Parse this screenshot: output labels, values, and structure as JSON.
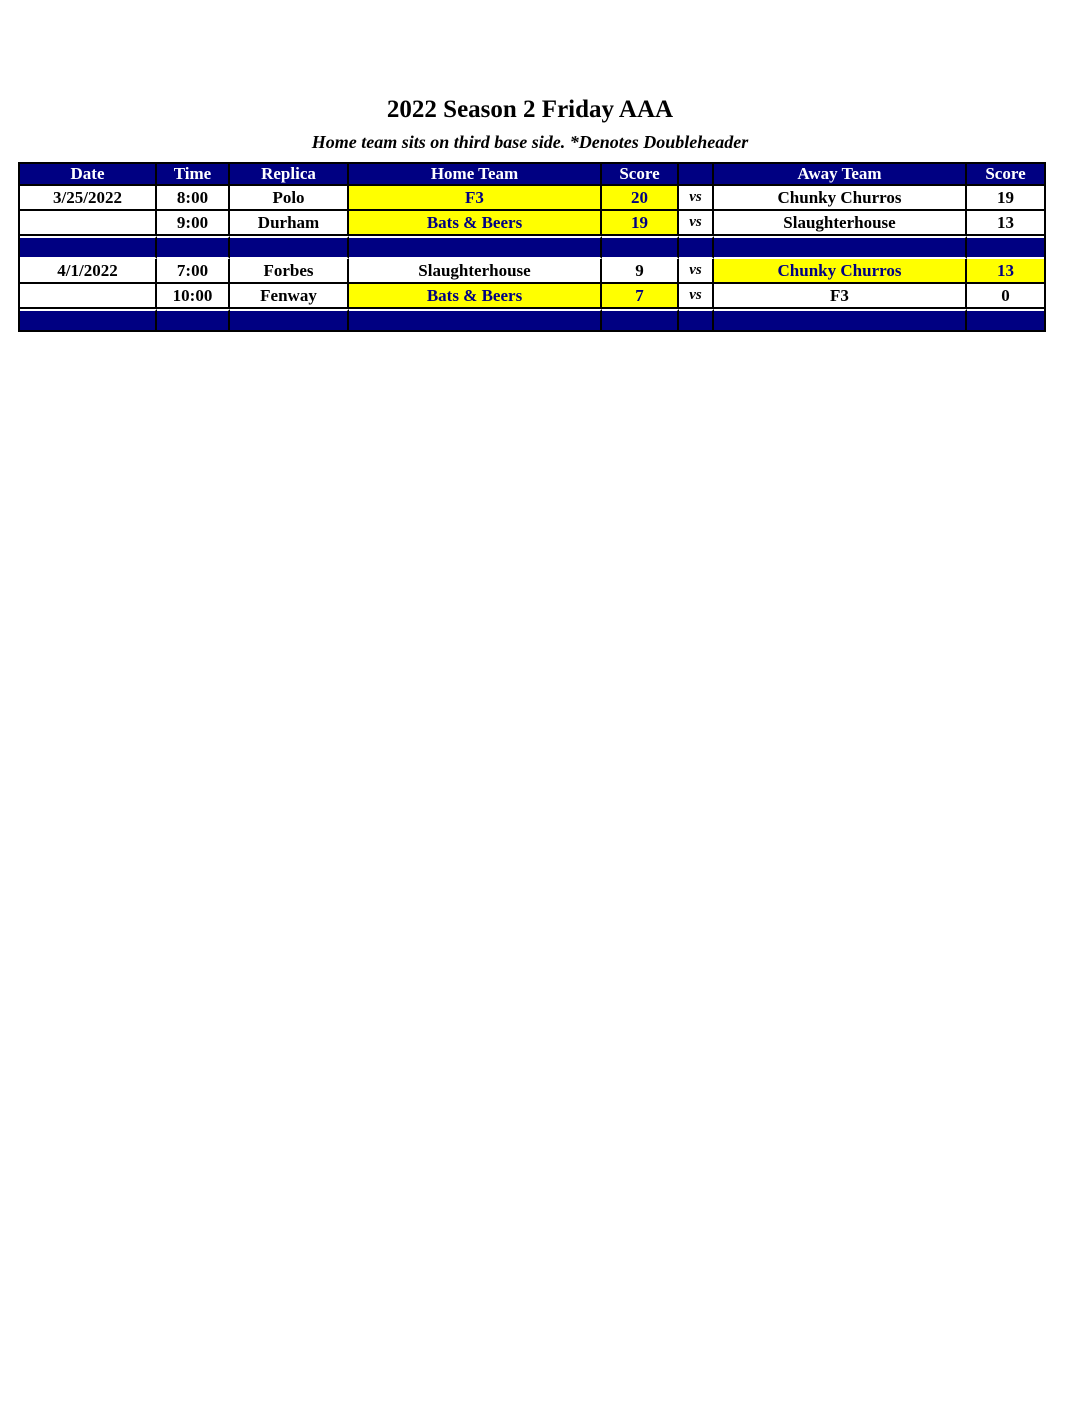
{
  "page": {
    "title": "2022 Season 2 Friday AAA",
    "subtitle": "Home team sits on third base side.  *Denotes Doubleheader"
  },
  "colors": {
    "header_bg": "#000082",
    "header_text": "#FFFFFF",
    "separator_bg": "#000082",
    "winner_highlight_bg": "#FFFF00",
    "winner_highlight_text": "#000082",
    "cell_text": "#000000"
  },
  "schedule_table": {
    "columns": [
      "Date",
      "Time",
      "Replica",
      "Home Team",
      "Score",
      "",
      "Away Team",
      "Score"
    ],
    "vs_label": "vs",
    "rows": [
      {
        "type": "game",
        "date": "3/25/2022",
        "time": "8:00",
        "replica": "Polo",
        "home_team": "F3",
        "home_score": "20",
        "away_team": "Chunky Churros",
        "away_score": "19",
        "home_winner": true,
        "away_winner": false
      },
      {
        "type": "game",
        "date": "",
        "time": "9:00",
        "replica": "Durham",
        "home_team": "Bats & Beers",
        "home_score": "19",
        "away_team": "Slaughterhouse",
        "away_score": "13",
        "home_winner": true,
        "away_winner": false
      },
      {
        "type": "separator"
      },
      {
        "type": "game",
        "date": "4/1/2022",
        "time": "7:00",
        "replica": "Forbes",
        "home_team": "Slaughterhouse",
        "home_score": "9",
        "away_team": "Chunky Churros",
        "away_score": "13",
        "home_winner": false,
        "away_winner": true
      },
      {
        "type": "game",
        "date": "",
        "time": "10:00",
        "replica": "Fenway",
        "home_team": "Bats & Beers",
        "home_score": "7",
        "away_team": "F3",
        "away_score": "0",
        "home_winner": true,
        "away_winner": false
      },
      {
        "type": "separator"
      }
    ]
  }
}
